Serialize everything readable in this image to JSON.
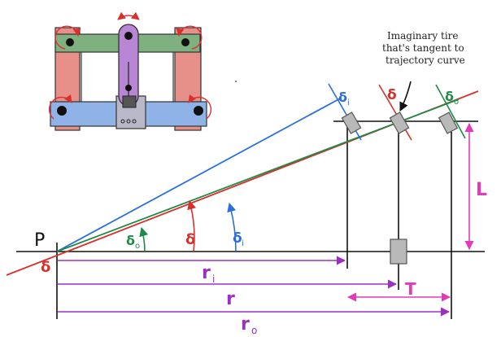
{
  "annotation": {
    "lines": [
      "Imaginary tire",
      "that's tangent to",
      "trajectory curve"
    ]
  },
  "labels": {
    "pivot": "P",
    "pivot_angle": "δ",
    "delta_inner_arc": "δ",
    "delta_inner_arc_sub": "i",
    "delta_mid_arc": "δ",
    "delta_outer_arc": "δ",
    "delta_outer_arc_sub": "o",
    "delta_inner_top": "δ",
    "delta_inner_top_sub": "i",
    "delta_mid_top": "δ",
    "delta_outer_top": "δ",
    "delta_outer_top_sub": "o",
    "wheelbase": "L",
    "track": "T",
    "r_inner": "r",
    "r_inner_sub": "i",
    "r_mid": "r",
    "r_outer": "r",
    "r_outer_sub": "o"
  },
  "colors": {
    "inner": "#2a6fdb",
    "mid": "#d8312c",
    "outer": "#1f8a45",
    "dimension": "#9b30c7",
    "wheelbase": "#e23bb8",
    "ink": "#111111",
    "tire": "#b9b9b9",
    "chassis_green": "#7fb07f",
    "chassis_red": "#e7908a",
    "chassis_blue": "#8fb3e6",
    "chassis_purple": "#b986d6"
  }
}
